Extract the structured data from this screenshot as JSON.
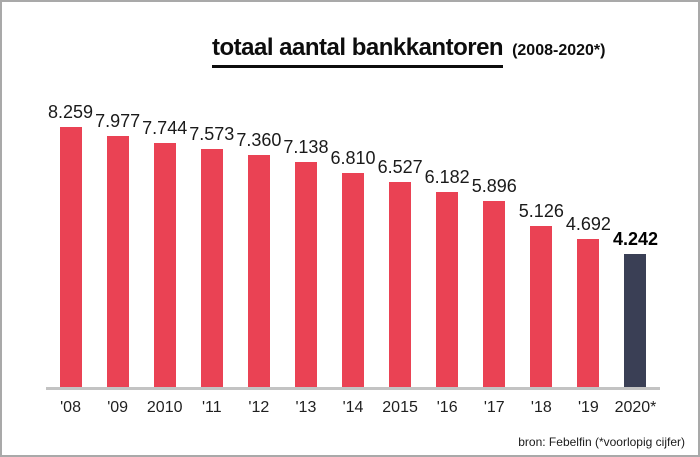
{
  "chart_data": {
    "type": "bar",
    "title": "totaal aantal bankkantoren",
    "subtitle": "(2008-2020*)",
    "categories": [
      "'08",
      "'09",
      "2010",
      "'11",
      "'12",
      "'13",
      "'14",
      "2015",
      "'16",
      "'17",
      "'18",
      "'19",
      "2020*"
    ],
    "values": [
      8259,
      7977,
      7744,
      7573,
      7360,
      7138,
      6810,
      6527,
      6182,
      5896,
      5126,
      4692,
      4242
    ],
    "value_labels": [
      "8.259",
      "7.977",
      "7.744",
      "7.573",
      "7.360",
      "7.138",
      "6.810",
      "6.527",
      "6.182",
      "5.896",
      "5.126",
      "4.692",
      "4.242"
    ],
    "highlight_index": 12,
    "bar_color": "#ea4254",
    "highlight_color": "#3a3f55",
    "axis_line_color": "#c3c3c3",
    "ylim": [
      0,
      8259
    ],
    "grid": "off",
    "legend": "none",
    "source": "bron: Febelfin (*voorlopig cijfer)"
  }
}
